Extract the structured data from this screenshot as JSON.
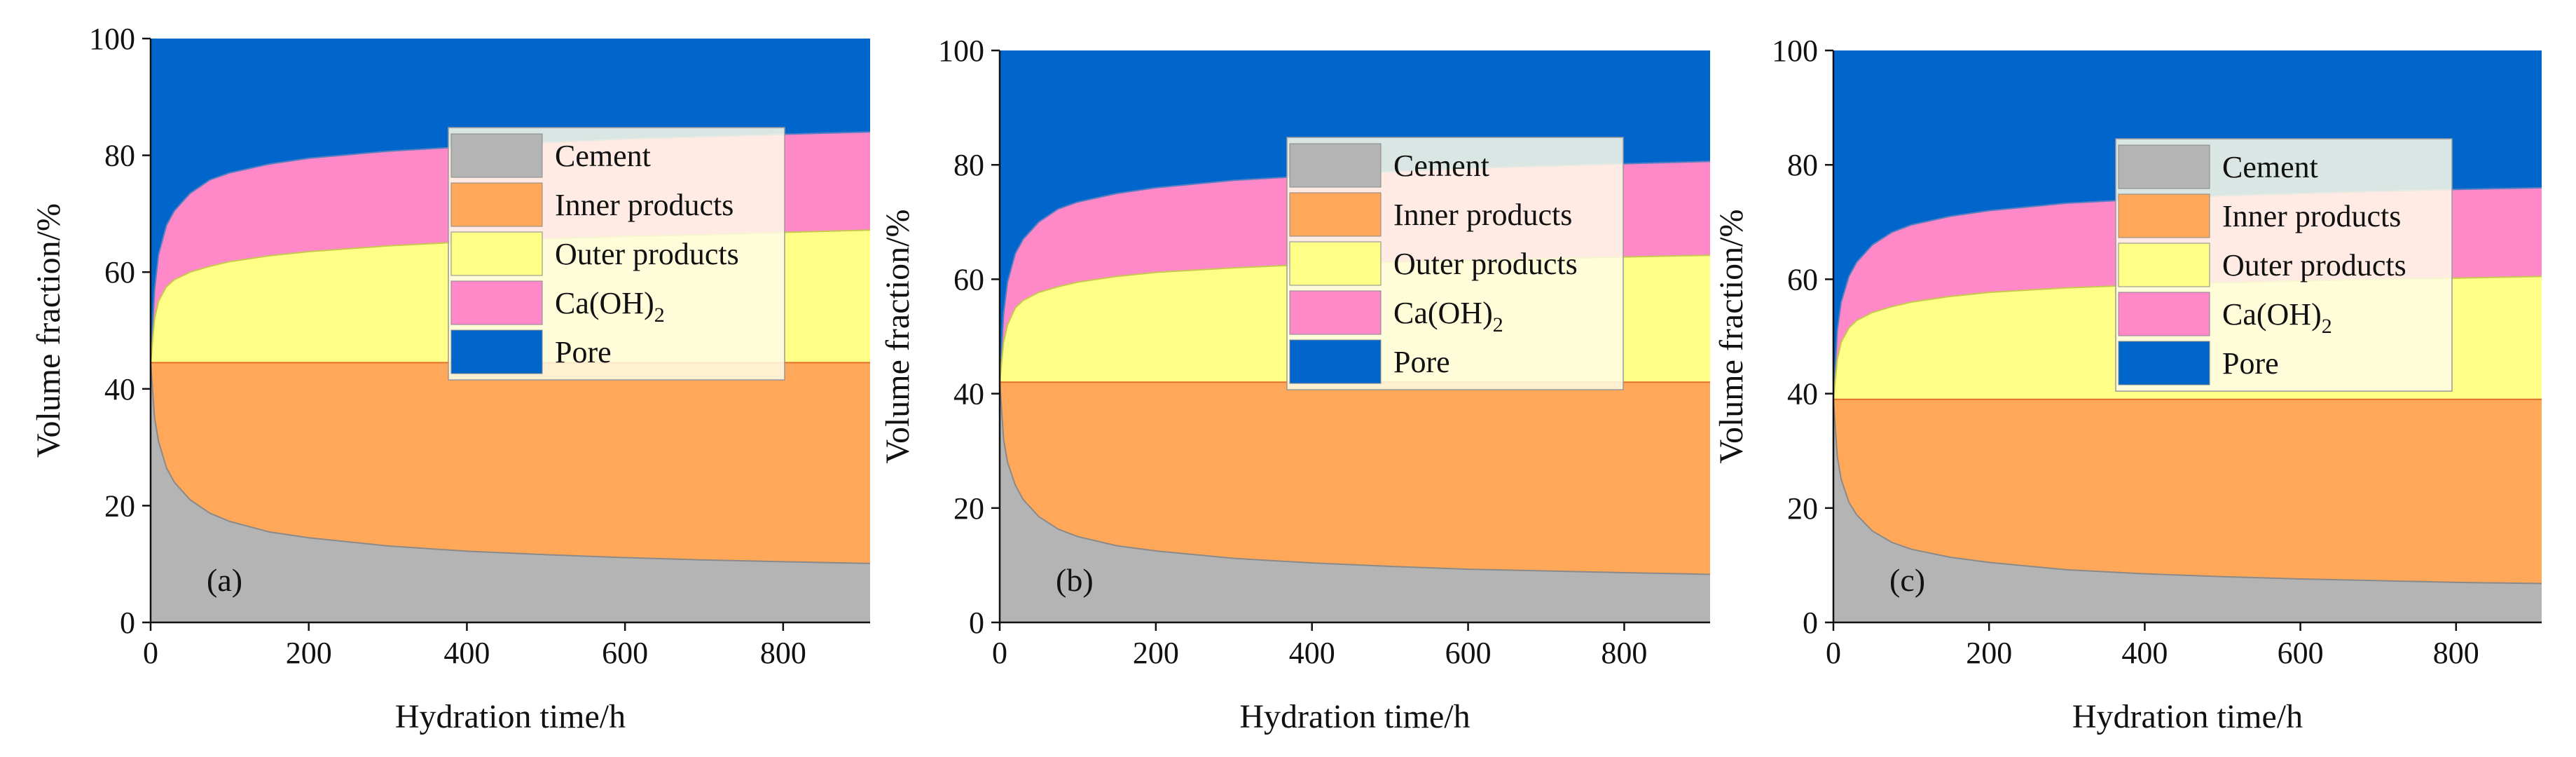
{
  "colors": {
    "cement": "#b4b4b4",
    "inner": "#ffa85a",
    "outer": "#ffff88",
    "caoh2": "#ff88c8",
    "pore": "#0066cc",
    "legend_bg": "#fffde8",
    "axis": "#111111"
  },
  "legend": {
    "cement": "Cement",
    "inner": "Inner products",
    "outer": "Outer products",
    "caoh2_main": "Ca(OH)",
    "caoh2_sub": "2",
    "pore": "Pore"
  },
  "chart_data": [
    {
      "type": "area",
      "stacked": true,
      "panel_label": "(a)",
      "xlabel": "Hydration time/h",
      "ylabel": "Volume fraction/%",
      "xlim": [
        0,
        910
      ],
      "ylim": [
        0,
        100
      ],
      "xticks": [
        0,
        200,
        400,
        600,
        800
      ],
      "yticks": [
        0,
        20,
        40,
        60,
        80,
        100
      ],
      "x": [
        0,
        5,
        10,
        20,
        30,
        50,
        75,
        100,
        150,
        200,
        300,
        400,
        500,
        600,
        700,
        800,
        910
      ],
      "series": [
        {
          "name": "Cement",
          "values": [
            44.5,
            35,
            31,
            26.5,
            24,
            21,
            18.7,
            17.3,
            15.5,
            14.5,
            13.1,
            12.2,
            11.6,
            11.1,
            10.7,
            10.4,
            10.1
          ]
        },
        {
          "name": "Inner products",
          "values": [
            44.5,
            44.5,
            44.5,
            44.5,
            44.5,
            44.5,
            44.5,
            44.5,
            44.5,
            44.5,
            44.5,
            44.5,
            44.5,
            44.5,
            44.5,
            44.5,
            44.5
          ]
        },
        {
          "name": "Outer products",
          "values": [
            44.5,
            52,
            55,
            57.5,
            58.7,
            60,
            61,
            61.8,
            62.8,
            63.5,
            64.5,
            65.2,
            65.7,
            66.1,
            66.4,
            66.8,
            67.2
          ]
        },
        {
          "name": "Ca(OH)2",
          "values": [
            44.5,
            57,
            63,
            68,
            70.5,
            73.5,
            75.8,
            77,
            78.5,
            79.5,
            80.7,
            81.5,
            82.2,
            82.8,
            83.2,
            83.6,
            84
          ]
        },
        {
          "name": "Pore",
          "values": [
            100,
            100,
            100,
            100,
            100,
            100,
            100,
            100,
            100,
            100,
            100,
            100,
            100,
            100,
            100,
            100,
            100
          ]
        }
      ]
    },
    {
      "type": "area",
      "stacked": true,
      "panel_label": "(b)",
      "xlabel": "Hydration time/h",
      "ylabel": "Volume fraction/%",
      "xlim": [
        0,
        910
      ],
      "ylim": [
        0,
        100
      ],
      "xticks": [
        0,
        200,
        400,
        600,
        800
      ],
      "yticks": [
        0,
        20,
        40,
        60,
        80,
        100
      ],
      "x": [
        0,
        5,
        10,
        20,
        30,
        50,
        75,
        100,
        150,
        200,
        300,
        400,
        500,
        600,
        700,
        800,
        910
      ],
      "series": [
        {
          "name": "Cement",
          "values": [
            42,
            32,
            28,
            24,
            21.5,
            18.5,
            16.3,
            15,
            13.4,
            12.5,
            11.2,
            10.4,
            9.8,
            9.3,
            9,
            8.7,
            8.4
          ]
        },
        {
          "name": "Inner products",
          "values": [
            42,
            42,
            42,
            42,
            42,
            42,
            42,
            42,
            42,
            42,
            42,
            42,
            42,
            42,
            42,
            42,
            42
          ]
        },
        {
          "name": "Outer products",
          "values": [
            42,
            49,
            52,
            55,
            56.3,
            57.7,
            58.7,
            59.5,
            60.5,
            61.2,
            62,
            62.6,
            63,
            63.3,
            63.6,
            63.9,
            64.2
          ]
        },
        {
          "name": "Ca(OH)2",
          "values": [
            42,
            54,
            59.5,
            64.5,
            67,
            70,
            72.3,
            73.5,
            75,
            76,
            77.3,
            78.1,
            78.8,
            79.4,
            79.8,
            80.2,
            80.6
          ]
        },
        {
          "name": "Pore",
          "values": [
            100,
            100,
            100,
            100,
            100,
            100,
            100,
            100,
            100,
            100,
            100,
            100,
            100,
            100,
            100,
            100,
            100
          ]
        }
      ]
    },
    {
      "type": "area",
      "stacked": true,
      "panel_label": "(c)",
      "xlabel": "Hydration time/h",
      "ylabel": "Volume fraction/%",
      "xlim": [
        0,
        910
      ],
      "ylim": [
        0,
        100
      ],
      "xticks": [
        0,
        200,
        400,
        600,
        800
      ],
      "yticks": [
        0,
        20,
        40,
        60,
        80,
        100
      ],
      "x": [
        0,
        5,
        10,
        20,
        30,
        50,
        75,
        100,
        150,
        200,
        300,
        400,
        500,
        600,
        700,
        800,
        910
      ],
      "series": [
        {
          "name": "Cement",
          "values": [
            39,
            29,
            25,
            21,
            18.8,
            16,
            14,
            12.8,
            11.4,
            10.5,
            9.2,
            8.5,
            8,
            7.6,
            7.3,
            7,
            6.8
          ]
        },
        {
          "name": "Inner products",
          "values": [
            39,
            39,
            39,
            39,
            39,
            39,
            39,
            39,
            39,
            39,
            39,
            39,
            39,
            39,
            39,
            39,
            39
          ]
        },
        {
          "name": "Outer products",
          "values": [
            39,
            46,
            49,
            51.5,
            52.8,
            54.2,
            55.2,
            56,
            57,
            57.7,
            58.5,
            59,
            59.4,
            59.7,
            60,
            60.2,
            60.5
          ]
        },
        {
          "name": "Ca(OH)2",
          "values": [
            39,
            51,
            56,
            60.5,
            63,
            66,
            68.2,
            69.5,
            71,
            72,
            73.3,
            74,
            74.6,
            75,
            75.4,
            75.7,
            76
          ]
        },
        {
          "name": "Pore",
          "values": [
            100,
            100,
            100,
            100,
            100,
            100,
            100,
            100,
            100,
            100,
            100,
            100,
            100,
            100,
            100,
            100,
            100
          ]
        }
      ]
    }
  ]
}
